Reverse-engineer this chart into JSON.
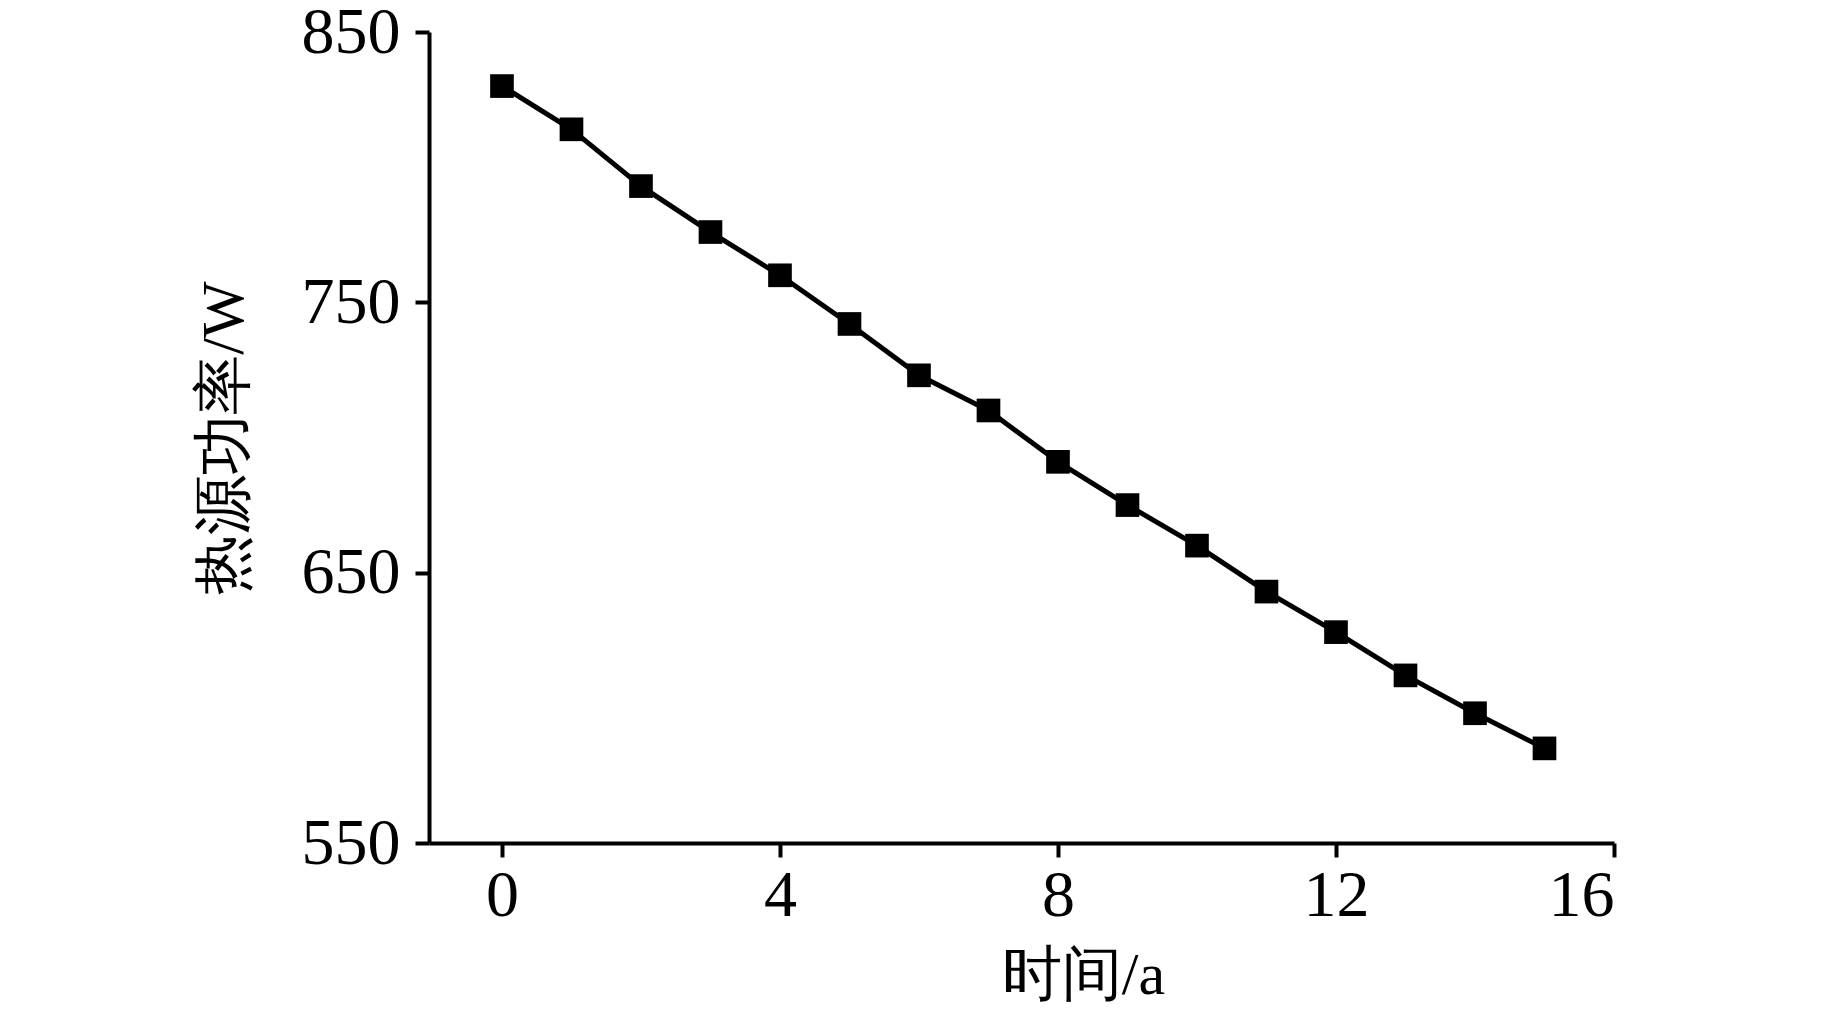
{
  "chart_data": {
    "type": "line",
    "xlabel": "时间/a",
    "ylabel": "热源功率/W",
    "x": [
      0,
      1,
      2,
      3,
      4,
      5,
      6,
      7,
      8,
      9,
      10,
      11,
      12,
      13,
      14,
      15
    ],
    "series": [
      {
        "color": "#000000",
        "values": [
          830,
          814,
          793,
          776,
          760,
          742,
          723,
          710,
          691,
          675,
          660,
          643,
          628,
          612,
          598,
          585
        ]
      }
    ],
    "xlim": [
      -1.05,
      16
    ],
    "ylim": [
      550,
      850
    ],
    "xticks": [
      0,
      4,
      8,
      12,
      16
    ],
    "yticks": [
      550,
      650,
      750,
      850
    ],
    "marker": "square",
    "line_style": "solid",
    "grid": false
  }
}
